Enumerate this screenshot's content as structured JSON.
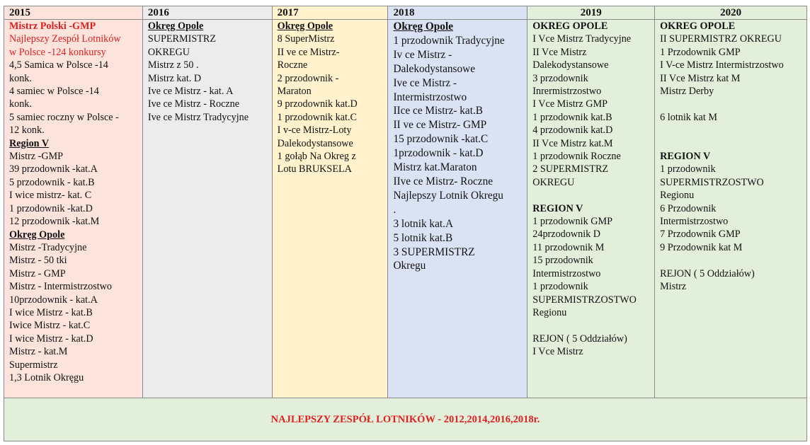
{
  "colors": {
    "2015": "#fce4dc",
    "2016": "#ececec",
    "2017": "#fff2cc",
    "2018": "#dae3f3",
    "2019": "#e2efda",
    "2020": "#e2efda",
    "footer": "#e2efda",
    "accent_red": "#e02020"
  },
  "columns": [
    {
      "year": "2015",
      "lines": [
        {
          "t": "Mistrz Polski -GMP",
          "s": "redb"
        },
        {
          "t": "Najlepszy Zespół Lotników",
          "s": "red"
        },
        {
          "t": "w Polsce -124 konkursy",
          "s": "red"
        },
        {
          "t": "4,5 Samica w  Polsce -14",
          "s": ""
        },
        {
          "t": "konk.",
          "s": ""
        },
        {
          "t": "4 samiec w  Polsce -14",
          "s": ""
        },
        {
          "t": "konk.",
          "s": ""
        },
        {
          "t": "5 samiec roczny w  Polsce -",
          "s": ""
        },
        {
          "t": "12 konk.",
          "s": ""
        },
        {
          "t": "Region V",
          "s": "hu"
        },
        {
          "t": "Mistrz -GMP",
          "s": ""
        },
        {
          "t": "39 przodownik -kat.A",
          "s": ""
        },
        {
          "t": "5 przodownik - kat.B",
          "s": ""
        },
        {
          "t": "I wice mistrz- kat. C",
          "s": ""
        },
        {
          "t": "1 przodownik -kat.D",
          "s": ""
        },
        {
          "t": "12 przodownik -kat.M",
          "s": ""
        },
        {
          "t": "Okręg Opole",
          "s": "hu"
        },
        {
          "t": "Mistrz -Tradycyjne",
          "s": ""
        },
        {
          "t": "Mistrz - 50 tki",
          "s": ""
        },
        {
          "t": "Mistrz - GMP",
          "s": ""
        },
        {
          "t": "Mistrz - Intermistrzostwo",
          "s": ""
        },
        {
          "t": "10przodownik - kat.A",
          "s": ""
        },
        {
          "t": "I wice Mistrz - kat.B",
          "s": ""
        },
        {
          "t": "Iwice Mistrz - kat.C",
          "s": ""
        },
        {
          "t": "I wice Mistrz - kat.D",
          "s": ""
        },
        {
          "t": "Mistrz - kat.M",
          "s": ""
        },
        {
          "t": "Supermistrz",
          "s": ""
        },
        {
          "t": "1,3 Lotnik Okręgu",
          "s": ""
        }
      ]
    },
    {
      "year": "2016",
      "lines": [
        {
          "t": "Okręg Opole",
          "s": "hu"
        },
        {
          "t": "SUPERMISTRZ",
          "s": ""
        },
        {
          "t": "OKREGU",
          "s": ""
        },
        {
          "t": "Mistrz z 50 .",
          "s": ""
        },
        {
          "t": "Mistrz kat. D",
          "s": ""
        },
        {
          "t": "Ive ce Mistrz - kat. A",
          "s": ""
        },
        {
          "t": "Ive ce Mistrz - Roczne",
          "s": ""
        },
        {
          "t": "Ive ce Mistrz Tradycyjne",
          "s": ""
        }
      ]
    },
    {
      "year": "2017",
      "lines": [
        {
          "t": "Okręg Opole",
          "s": "hu"
        },
        {
          "t": "8 SuperMistrz",
          "s": ""
        },
        {
          "t": "II ve ce Mistrz-",
          "s": ""
        },
        {
          "t": "Roczne",
          "s": ""
        },
        {
          "t": "2 przodownik -",
          "s": ""
        },
        {
          "t": "Maraton",
          "s": ""
        },
        {
          "t": "9 przodownik kat.D",
          "s": ""
        },
        {
          "t": "1 przodownik kat.C",
          "s": ""
        },
        {
          "t": "I v-ce Mistrz-Loty",
          "s": ""
        },
        {
          "t": "Dalekodystansowe",
          "s": ""
        },
        {
          "t": "1 gołąb Na Okreg z",
          "s": ""
        },
        {
          "t": "Lotu BRUKSELA",
          "s": ""
        }
      ]
    },
    {
      "year": "2018",
      "lines": [
        {
          "t": "Okręg Opole",
          "s": "hu"
        },
        {
          "t": "1 przodownik Tradycyjne",
          "s": ""
        },
        {
          "t": "Iv ce Mistrz -",
          "s": ""
        },
        {
          "t": "Dalekodystansowe",
          "s": ""
        },
        {
          "t": "Ive ce Mistrz -",
          "s": ""
        },
        {
          "t": "Intermistrzostwo",
          "s": ""
        },
        {
          "t": "IIce ce Mistrz- kat.B",
          "s": ""
        },
        {
          "t": "II ve ce Mistrz- GMP",
          "s": ""
        },
        {
          "t": "15 przodownik -kat.C",
          "s": ""
        },
        {
          "t": "1przodownik - kat.D",
          "s": ""
        },
        {
          "t": "Mistrz kat.Maraton",
          "s": ""
        },
        {
          "t": "IIve ce Mistrz- Roczne",
          "s": ""
        },
        {
          "t": "Najlepszy Lotnik Okregu",
          "s": ""
        },
        {
          "t": ".",
          "s": ""
        },
        {
          "t": "3 lotnik kat.A",
          "s": ""
        },
        {
          "t": "5 lotnik kat.B",
          "s": ""
        },
        {
          "t": "3 SUPERMISTRZ",
          "s": ""
        },
        {
          "t": "Okregu",
          "s": ""
        }
      ]
    },
    {
      "year": "2019",
      "lines": [
        {
          "t": "OKREG OPOLE",
          "s": "hb"
        },
        {
          "t": "I Vce Mistrz Tradycyjne",
          "s": ""
        },
        {
          "t": "II Vce Mistrz",
          "s": ""
        },
        {
          "t": "Dalekodystansowe",
          "s": ""
        },
        {
          "t": "3 przodownik",
          "s": ""
        },
        {
          "t": "Inrermistrzostwo",
          "s": ""
        },
        {
          "t": "I Vce Mistrz GMP",
          "s": ""
        },
        {
          "t": "1 przodownik kat.B",
          "s": ""
        },
        {
          "t": "4 przodownik kat.D",
          "s": ""
        },
        {
          "t": "II Vce Mistrz kat.M",
          "s": ""
        },
        {
          "t": "1 przodownik Roczne",
          "s": ""
        },
        {
          "t": "2 SUPERMISTRZ",
          "s": ""
        },
        {
          "t": "OKREGU",
          "s": ""
        },
        {
          "t": "",
          "s": ""
        },
        {
          "t": "REGION V",
          "s": "hb"
        },
        {
          "t": "1 przodownik GMP",
          "s": ""
        },
        {
          "t": "24przodownik D",
          "s": ""
        },
        {
          "t": "11 przodownik M",
          "s": ""
        },
        {
          "t": "15 przodownik",
          "s": ""
        },
        {
          "t": "Intermistrzostwo",
          "s": ""
        },
        {
          "t": "1 przodownik",
          "s": ""
        },
        {
          "t": "SUPERMISTRZOSTWO",
          "s": ""
        },
        {
          "t": "Regionu",
          "s": ""
        },
        {
          "t": "",
          "s": ""
        },
        {
          "t": "REJON ( 5 Oddziałów)",
          "s": ""
        },
        {
          "t": "I Vce Mistrz",
          "s": ""
        }
      ]
    },
    {
      "year": "2020",
      "lines": [
        {
          "t": "OKREG OPOLE",
          "s": "hb"
        },
        {
          "t": "II SUPERMISTRZ OKREGU",
          "s": ""
        },
        {
          "t": "1 Przodownik GMP",
          "s": ""
        },
        {
          "t": "I V-ce Mistrz Intermistrzostwo",
          "s": ""
        },
        {
          "t": "II Vce Mistrz kat M",
          "s": ""
        },
        {
          "t": "Mistrz Derby",
          "s": ""
        },
        {
          "t": "",
          "s": ""
        },
        {
          "t": "6 lotnik kat M",
          "s": ""
        },
        {
          "t": "",
          "s": ""
        },
        {
          "t": "",
          "s": ""
        },
        {
          "t": "REGION V",
          "s": "hb"
        },
        {
          "t": "1 przodownik",
          "s": ""
        },
        {
          "t": "SUPERMISTRZOSTWO",
          "s": ""
        },
        {
          "t": "Regionu",
          "s": ""
        },
        {
          "t": "6 Przodownik",
          "s": ""
        },
        {
          "t": "Intermistrzostwo",
          "s": ""
        },
        {
          "t": "7 Przodownik GMP",
          "s": ""
        },
        {
          "t": "9 Przodownik kat M",
          "s": ""
        },
        {
          "t": "",
          "s": ""
        },
        {
          "t": "REJON ( 5 Oddziałów)",
          "s": ""
        },
        {
          "t": "Mistrz",
          "s": ""
        }
      ]
    }
  ],
  "footer": "NAJLEPSZY ZESPÓŁ LOTNIKÓW - 2012,2014,2016,2018r."
}
